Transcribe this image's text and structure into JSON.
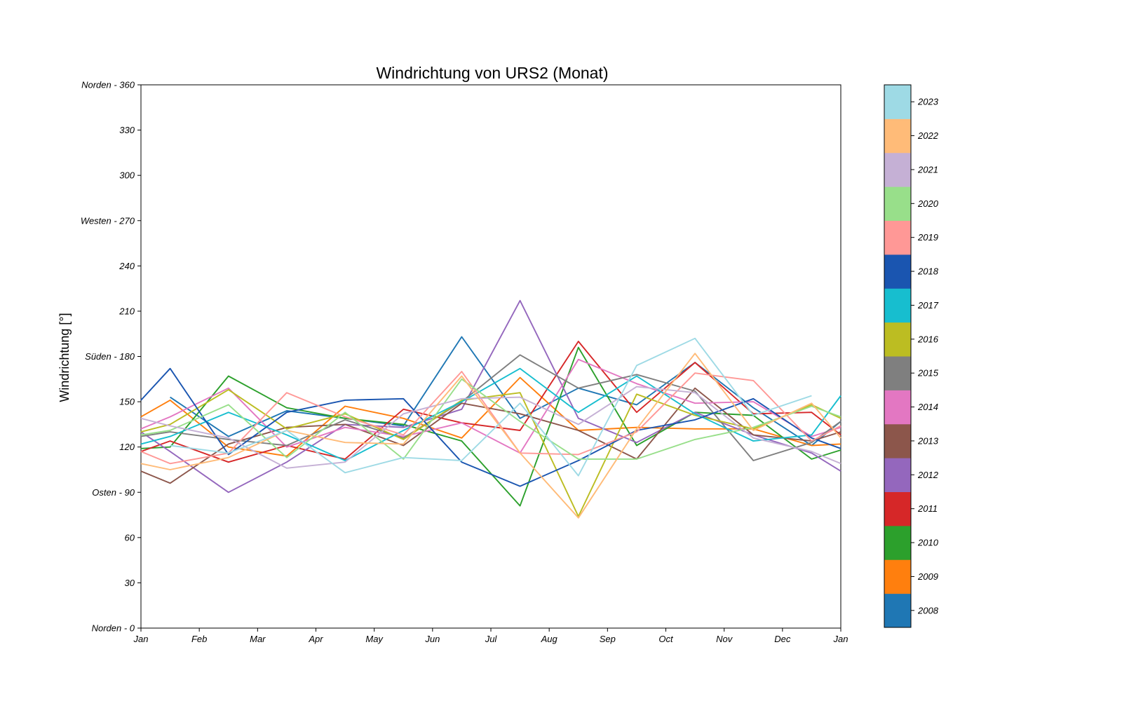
{
  "chart_data": {
    "type": "line",
    "title": "Windrichtung von URS2 (Monat)",
    "xlabel": "",
    "ylabel": "Windrichtung [°]",
    "ylim": [
      0,
      360
    ],
    "yticks": [
      0,
      30,
      60,
      90,
      120,
      150,
      180,
      210,
      240,
      270,
      300,
      330,
      360
    ],
    "ytick_labels": [
      "Norden - 0",
      "30",
      "60",
      "Osten - 90",
      "120",
      "150",
      "Süden - 180",
      "210",
      "240",
      "Westen - 270",
      "300",
      "330",
      "Norden - 360"
    ],
    "xlim": [
      0,
      12
    ],
    "xticks": [
      0,
      1,
      2,
      3,
      4,
      5,
      6,
      7,
      8,
      9,
      10,
      11,
      12
    ],
    "xtick_labels": [
      "Jan",
      "Feb",
      "Mar",
      "Apr",
      "May",
      "Jun",
      "Jul",
      "Aug",
      "Sep",
      "Oct",
      "Nov",
      "Dec",
      "Jan"
    ],
    "x": [
      0,
      0.5,
      1.5,
      2.5,
      3.5,
      4.5,
      5.5,
      6.5,
      7.5,
      8.5,
      9.5,
      10.5,
      11.5,
      12
    ],
    "grid": false,
    "legend": "colorbar-right",
    "series": [
      {
        "name": "2008",
        "color": "#1f77b4",
        "values": [
          null,
          153,
          127,
          144,
          139,
          134,
          193,
          139,
          159,
          148,
          176,
          146,
          121,
          137
        ]
      },
      {
        "name": "2009",
        "color": "#ff7f0e",
        "values": [
          140,
          151,
          120,
          114,
          147,
          139,
          126,
          166,
          131,
          133,
          132,
          132,
          121,
          122
        ]
      },
      {
        "name": "2010",
        "color": "#2ca02c",
        "values": [
          119,
          120,
          167,
          146,
          139,
          135,
          124,
          81,
          186,
          121,
          143,
          141,
          112,
          118
        ]
      },
      {
        "name": "2011",
        "color": "#d62728",
        "values": [
          117,
          124,
          110,
          121,
          112,
          145,
          136,
          131,
          190,
          143,
          176,
          142,
          143,
          128
        ]
      },
      {
        "name": "2012",
        "color": "#9467bd",
        "values": [
          130,
          117,
          90,
          110,
          135,
          133,
          145,
          217,
          139,
          123,
          143,
          128,
          116,
          104
        ]
      },
      {
        "name": "2013",
        "color": "#8c564b",
        "values": [
          104,
          96,
          122,
          133,
          135,
          121,
          149,
          142,
          131,
          112,
          159,
          128,
          124,
          130
        ]
      },
      {
        "name": "2014",
        "color": "#e377c2",
        "values": [
          132,
          140,
          159,
          120,
          133,
          127,
          136,
          116,
          178,
          162,
          149,
          150,
          127,
          133
        ]
      },
      {
        "name": "2015",
        "color": "#7f7f7f",
        "values": [
          127,
          130,
          125,
          121,
          138,
          126,
          150,
          181,
          159,
          168,
          157,
          111,
          123,
          137
        ]
      },
      {
        "name": "2016",
        "color": "#bcbd22",
        "values": [
          130,
          135,
          158,
          132,
          142,
          125,
          151,
          156,
          74,
          155,
          141,
          132,
          148,
          139
        ]
      },
      {
        "name": "2017",
        "color": "#17becf",
        "values": [
          122,
          127,
          143,
          128,
          111,
          131,
          150,
          172,
          143,
          167,
          142,
          124,
          128,
          154
        ]
      },
      {
        "name": "2018",
        "color": "#1a55b0",
        "values": [
          151,
          172,
          115,
          143,
          151,
          152,
          110,
          94,
          111,
          131,
          138,
          152,
          126,
          119
        ]
      },
      {
        "name": "2019",
        "color": "#ff9896",
        "values": [
          117,
          109,
          116,
          156,
          140,
          128,
          170,
          116,
          115,
          130,
          169,
          164,
          124,
          134
        ]
      },
      {
        "name": "2020",
        "color": "#98df8a",
        "values": [
          128,
          131,
          148,
          113,
          143,
          112,
          165,
          137,
          112,
          112,
          125,
          133,
          147,
          140
        ]
      },
      {
        "name": "2021",
        "color": "#c5b0d5",
        "values": [
          139,
          134,
          126,
          106,
          110,
          142,
          152,
          153,
          135,
          160,
          156,
          126,
          117,
          109
        ]
      },
      {
        "name": "2022",
        "color": "#ffbb78",
        "values": [
          109,
          105,
          113,
          131,
          123,
          122,
          167,
          116,
          73,
          132,
          182,
          131,
          149,
          126
        ]
      },
      {
        "name": "2023",
        "color": "#9edae5",
        "values": [
          null,
          121,
          116,
          131,
          103,
          113,
          111,
          149,
          101,
          174,
          192,
          141,
          154,
          null
        ]
      }
    ]
  }
}
